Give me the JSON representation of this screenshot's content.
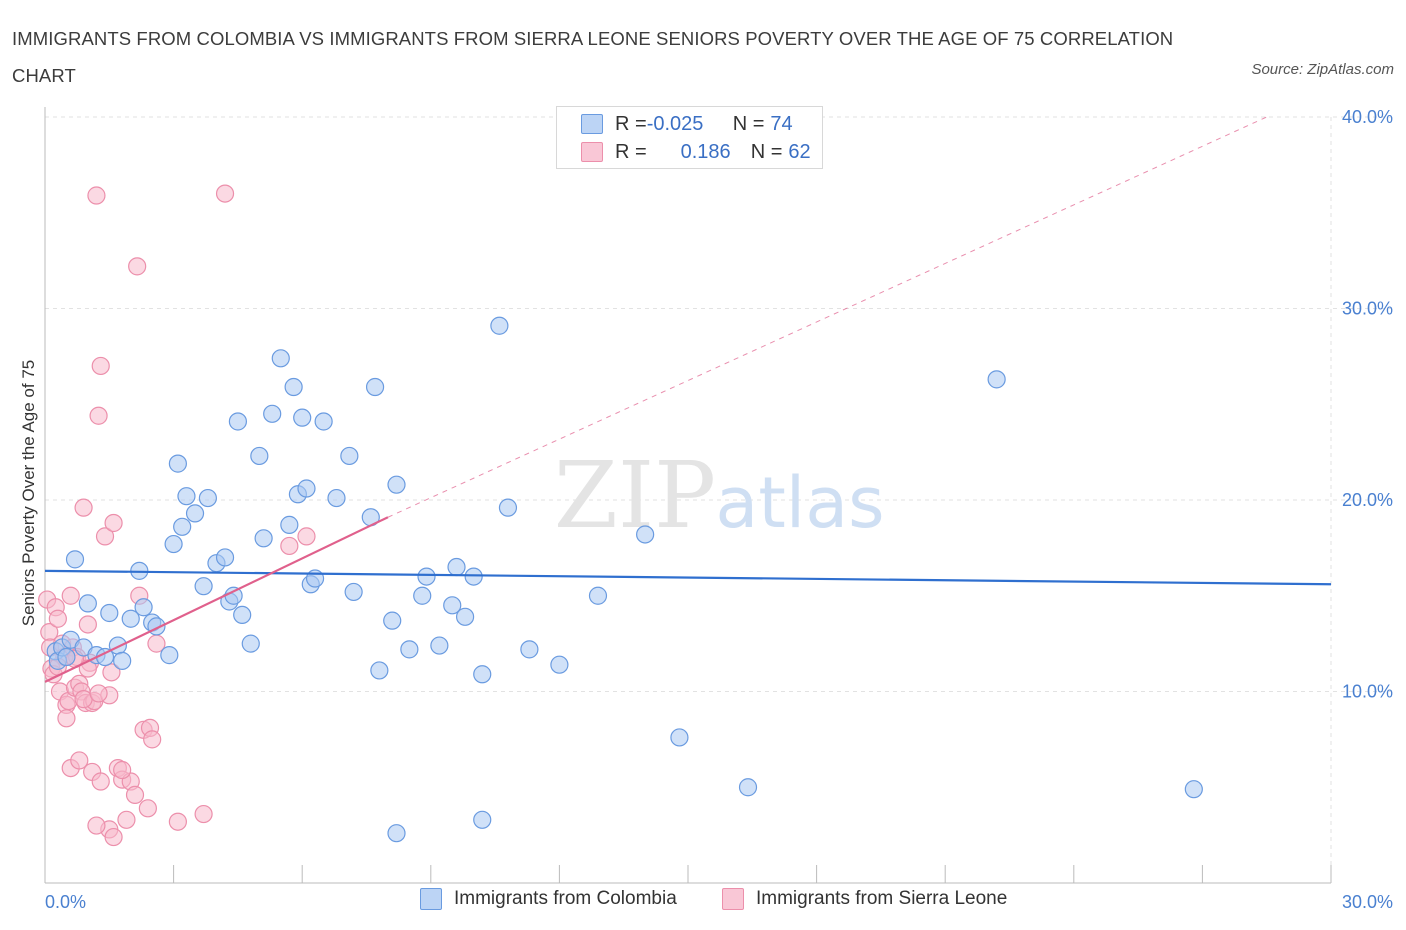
{
  "title": "IMMIGRANTS FROM COLOMBIA VS IMMIGRANTS FROM SIERRA LEONE SENIORS POVERTY OVER THE AGE OF 75 CORRELATION CHART",
  "source": "Source: ZipAtlas.com",
  "watermark": {
    "zip": "ZIP",
    "atlas": "atlas"
  },
  "legend": {
    "rows": [
      {
        "r_label": "R = ",
        "r_value": "-0.025",
        "n_label": "N = ",
        "n_value": "74"
      },
      {
        "r_label": "R = ",
        "r_value": "0.186",
        "n_label": "N = ",
        "n_value": "62"
      }
    ]
  },
  "colors": {
    "colombia_fill": "#a9c8f2",
    "colombia_stroke": "#6a9be0",
    "colombia_line": "#2f6fcf",
    "sierra_fill": "#f7b9cc",
    "sierra_stroke": "#ec8fab",
    "sierra_line": "#e0608c",
    "grid": "#e2e2e2",
    "tick_text": "#4a80d0"
  },
  "chart_data": {
    "type": "scatter",
    "title": "IMMIGRANTS FROM COLOMBIA VS IMMIGRANTS FROM SIERRA LEONE SENIORS POVERTY OVER THE AGE OF 75 CORRELATION CHART",
    "xlabel": "",
    "ylabel": "Seniors Poverty Over the Age of 75",
    "xlim": [
      0,
      30
    ],
    "ylim": [
      0,
      40
    ],
    "x_tick_labels": [
      "0.0%",
      "30.0%"
    ],
    "y_tick_labels": [
      "10.0%",
      "20.0%",
      "30.0%",
      "40.0%"
    ],
    "y_ticks": [
      10,
      20,
      30,
      40
    ],
    "grid": true,
    "legend_position": "bottom",
    "series": [
      {
        "name": "Immigrants from Colombia",
        "points": [
          [
            0.25,
            12.1
          ],
          [
            0.3,
            11.6
          ],
          [
            0.4,
            12.3
          ],
          [
            0.5,
            11.8
          ],
          [
            0.6,
            12.7
          ],
          [
            0.7,
            16.9
          ],
          [
            0.9,
            12.3
          ],
          [
            1.0,
            14.6
          ],
          [
            1.2,
            11.9
          ],
          [
            1.4,
            11.8
          ],
          [
            1.5,
            14.1
          ],
          [
            1.7,
            12.4
          ],
          [
            1.8,
            11.6
          ],
          [
            2.0,
            13.8
          ],
          [
            2.2,
            16.3
          ],
          [
            2.3,
            14.4
          ],
          [
            2.5,
            13.6
          ],
          [
            2.6,
            13.4
          ],
          [
            2.9,
            11.9
          ],
          [
            3.0,
            17.7
          ],
          [
            3.1,
            21.9
          ],
          [
            3.2,
            18.6
          ],
          [
            3.3,
            20.2
          ],
          [
            3.5,
            19.3
          ],
          [
            3.7,
            15.5
          ],
          [
            3.8,
            20.1
          ],
          [
            4.0,
            16.7
          ],
          [
            4.2,
            17.0
          ],
          [
            4.3,
            14.7
          ],
          [
            4.4,
            15.0
          ],
          [
            4.5,
            24.1
          ],
          [
            4.6,
            14.0
          ],
          [
            4.8,
            12.5
          ],
          [
            5.0,
            22.3
          ],
          [
            5.1,
            18.0
          ],
          [
            5.3,
            24.5
          ],
          [
            5.5,
            27.4
          ],
          [
            5.7,
            18.7
          ],
          [
            5.8,
            25.9
          ],
          [
            5.9,
            20.3
          ],
          [
            6.0,
            24.3
          ],
          [
            6.1,
            20.6
          ],
          [
            6.2,
            15.6
          ],
          [
            6.3,
            15.9
          ],
          [
            6.5,
            24.1
          ],
          [
            6.8,
            20.1
          ],
          [
            7.1,
            22.3
          ],
          [
            7.2,
            15.2
          ],
          [
            7.6,
            19.1
          ],
          [
            7.7,
            25.9
          ],
          [
            7.8,
            11.1
          ],
          [
            8.1,
            13.7
          ],
          [
            8.2,
            20.8
          ],
          [
            8.5,
            12.2
          ],
          [
            8.8,
            15.0
          ],
          [
            8.9,
            16.0
          ],
          [
            9.2,
            12.4
          ],
          [
            9.5,
            14.5
          ],
          [
            9.6,
            16.5
          ],
          [
            9.8,
            13.9
          ],
          [
            10.0,
            16.0
          ],
          [
            10.2,
            10.9
          ],
          [
            10.6,
            29.1
          ],
          [
            10.8,
            19.6
          ],
          [
            11.3,
            12.2
          ],
          [
            12.0,
            11.4
          ],
          [
            12.9,
            15.0
          ],
          [
            14.0,
            18.2
          ],
          [
            14.8,
            7.6
          ],
          [
            16.4,
            5.0
          ],
          [
            22.2,
            26.3
          ],
          [
            26.8,
            4.9
          ],
          [
            8.2,
            2.6
          ],
          [
            10.2,
            3.3
          ]
        ],
        "trend": {
          "x": [
            0,
            30
          ],
          "y": [
            16.3,
            15.6
          ]
        }
      },
      {
        "name": "Immigrants from Sierra Leone",
        "points": [
          [
            0.05,
            14.8
          ],
          [
            0.1,
            13.1
          ],
          [
            0.12,
            12.3
          ],
          [
            0.15,
            11.2
          ],
          [
            0.2,
            10.9
          ],
          [
            0.25,
            14.4
          ],
          [
            0.3,
            13.8
          ],
          [
            0.35,
            10.0
          ],
          [
            0.4,
            12.5
          ],
          [
            0.45,
            11.8
          ],
          [
            0.5,
            9.3
          ],
          [
            0.5,
            8.6
          ],
          [
            0.55,
            9.5
          ],
          [
            0.6,
            15.0
          ],
          [
            0.65,
            12.3
          ],
          [
            0.7,
            10.2
          ],
          [
            0.75,
            11.8
          ],
          [
            0.8,
            10.4
          ],
          [
            0.85,
            10.0
          ],
          [
            0.9,
            19.6
          ],
          [
            0.95,
            9.4
          ],
          [
            1.0,
            13.5
          ],
          [
            1.05,
            11.5
          ],
          [
            1.1,
            9.4
          ],
          [
            1.15,
            9.5
          ],
          [
            1.2,
            35.9
          ],
          [
            1.25,
            24.4
          ],
          [
            1.3,
            27.0
          ],
          [
            1.4,
            18.1
          ],
          [
            1.5,
            9.8
          ],
          [
            1.55,
            11.0
          ],
          [
            1.6,
            18.8
          ],
          [
            1.7,
            6.0
          ],
          [
            1.8,
            5.4
          ],
          [
            1.9,
            3.3
          ],
          [
            2.0,
            5.3
          ],
          [
            2.1,
            4.6
          ],
          [
            2.15,
            32.2
          ],
          [
            2.2,
            15.0
          ],
          [
            2.3,
            8.0
          ],
          [
            2.4,
            3.9
          ],
          [
            2.45,
            8.1
          ],
          [
            2.5,
            7.5
          ],
          [
            2.6,
            12.5
          ],
          [
            3.1,
            3.2
          ],
          [
            3.7,
            3.6
          ],
          [
            4.2,
            36.0
          ],
          [
            5.7,
            17.6
          ],
          [
            6.1,
            18.1
          ],
          [
            0.6,
            6.0
          ],
          [
            0.8,
            6.4
          ],
          [
            1.1,
            5.8
          ],
          [
            1.3,
            5.3
          ],
          [
            1.5,
            2.8
          ],
          [
            1.2,
            3.0
          ],
          [
            1.6,
            2.4
          ],
          [
            0.3,
            11.3
          ],
          [
            0.7,
            11.7
          ],
          [
            0.9,
            9.6
          ],
          [
            1.0,
            11.2
          ],
          [
            1.8,
            5.9
          ],
          [
            1.25,
            9.9
          ]
        ],
        "trend": {
          "x": [
            0,
            8
          ],
          "y": [
            10.5,
            19.1
          ]
        },
        "trend_dashed_extension": {
          "x": [
            8,
            28.5
          ],
          "y": [
            19.1,
            40.0
          ]
        }
      }
    ]
  }
}
